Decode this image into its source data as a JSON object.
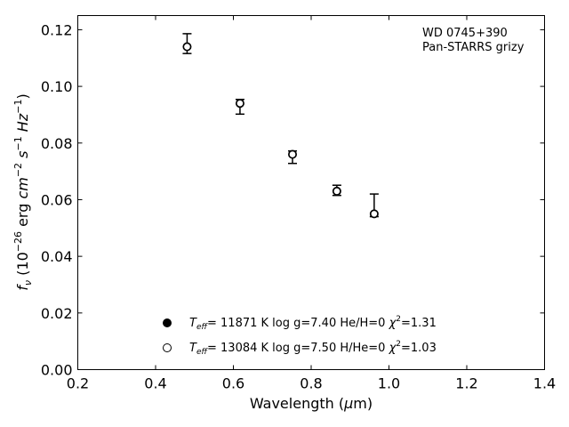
{
  "chart_data": {
    "type": "scatter",
    "xlabel": "Wavelength (μm)",
    "xlabel_parts": {
      "prefix": "Wavelength (",
      "mu": "μ",
      "suffix": "m)"
    },
    "ylabel_parts": {
      "f": "f",
      "nu": "ν",
      "a": " (10",
      "sup1": "−26",
      "b": " erg ",
      "cm": "cm",
      "sup2": "−2",
      "c": " ",
      "s": "s",
      "sup3": "−1",
      "d": " ",
      "hz": "Hz",
      "sup4": "−1",
      "e": ")"
    },
    "xlim": [
      0.2,
      1.4
    ],
    "ylim": [
      0.0,
      0.125
    ],
    "xticks": [
      0.2,
      0.4,
      0.6,
      0.8,
      1.0,
      1.2,
      1.4
    ],
    "xtick_labels": [
      "0.2",
      "0.4",
      "0.6",
      "0.8",
      "1.0",
      "1.2",
      "1.4"
    ],
    "yticks": [
      0.0,
      0.02,
      0.04,
      0.06,
      0.08,
      0.1,
      0.12
    ],
    "ytick_labels": [
      "0.00",
      "0.02",
      "0.04",
      "0.06",
      "0.08",
      "0.10",
      "0.12"
    ],
    "grid": false,
    "annotation": [
      "WD 0745+390",
      "Pan-STARRS grizy"
    ],
    "observed": {
      "x": [
        0.481,
        0.617,
        0.752,
        0.866,
        0.962
      ],
      "y": [
        0.1151,
        0.0928,
        0.075,
        0.0633,
        0.058
      ],
      "yerr": [
        0.0035,
        0.0026,
        0.0022,
        0.0018,
        0.004
      ]
    },
    "series": [
      {
        "marker": "filled-circle",
        "color": "#000000",
        "x": [
          0.481,
          0.617,
          0.752,
          0.866,
          0.962
        ],
        "y": [
          0.114,
          0.094,
          0.076,
          0.063,
          0.055
        ],
        "legend_parts": {
          "T": "T",
          "sub": "eff",
          "a": "= 11871 K  log g=7.40  He/H=0  ",
          "chi": "χ",
          "sup": "2",
          "b": "=1.31"
        }
      },
      {
        "marker": "open-circle",
        "color": "#000000",
        "x": [
          0.481,
          0.617,
          0.752,
          0.866,
          0.962
        ],
        "y": [
          0.114,
          0.094,
          0.076,
          0.063,
          0.055
        ],
        "legend_parts": {
          "T": "T",
          "sub": "eff",
          "a": "= 13084 K  log g=7.50  H/He=0  ",
          "chi": "χ",
          "sup": "2",
          "b": "=1.03"
        }
      }
    ],
    "legend_position": "bottom-center"
  }
}
